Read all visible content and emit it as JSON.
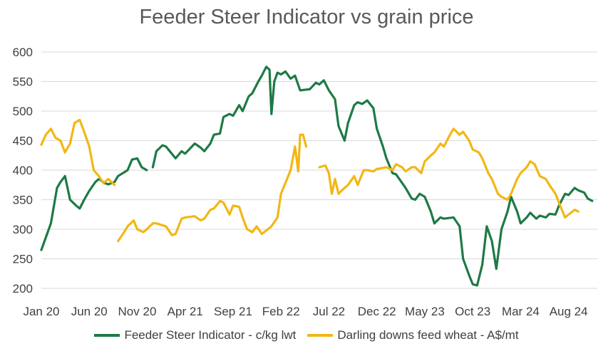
{
  "chart_data": {
    "type": "line",
    "title": "Feeder Steer Indicator vs grain price",
    "xlabel": "",
    "ylabel": "",
    "ylim": [
      200,
      600
    ],
    "yticks": [
      200,
      250,
      300,
      350,
      400,
      450,
      500,
      550,
      600
    ],
    "x_tick_labels": [
      "Jan 20",
      "Jun 20",
      "Nov 20",
      "Apr 21",
      "Sep 21",
      "Feb 22",
      "Jul 22",
      "Dec 22",
      "May 23",
      "Oct 23",
      "Mar 24",
      "Aug 24"
    ],
    "x_tick_dates": [
      "2020-01",
      "2020-06",
      "2020-11",
      "2021-04",
      "2021-09",
      "2022-02",
      "2022-07",
      "2022-12",
      "2023-05",
      "2023-10",
      "2024-03",
      "2024-08"
    ],
    "x_range": [
      "2020-01",
      "2024-11"
    ],
    "grid": "horizontal",
    "legend_position": "bottom",
    "series": [
      {
        "name": "Feeder Steer Indicator - c/kg lwt",
        "color": "#1e7a46",
        "segments": [
          [
            [
              "2020-01",
              265
            ],
            [
              "2020-02",
              310
            ],
            [
              "2020-02-20",
              370
            ],
            [
              "2020-03",
              380
            ],
            [
              "2020-03-15",
              390
            ],
            [
              "2020-04",
              350
            ],
            [
              "2020-04-20",
              340
            ],
            [
              "2020-05",
              335
            ],
            [
              "2020-05-15",
              350
            ],
            [
              "2020-06",
              365
            ],
            [
              "2020-06-20",
              380
            ],
            [
              "2020-07",
              385
            ],
            [
              "2020-07-20",
              378
            ],
            [
              "2020-08",
              376
            ],
            [
              "2020-08-20",
              380
            ],
            [
              "2020-09",
              390
            ],
            [
              "2020-10",
              400
            ],
            [
              "2020-10-15",
              418
            ],
            [
              "2020-11",
              420
            ],
            [
              "2020-11-15",
              405
            ],
            [
              "2020-12",
              400
            ]
          ],
          [
            [
              "2020-12-20",
              405
            ],
            [
              "2021-01",
              432
            ],
            [
              "2021-01-20",
              442
            ],
            [
              "2021-02",
              440
            ],
            [
              "2021-03",
              420
            ],
            [
              "2021-03-20",
              432
            ],
            [
              "2021-04",
              428
            ],
            [
              "2021-05",
              445
            ],
            [
              "2021-05-20",
              438
            ],
            [
              "2021-06",
              432
            ],
            [
              "2021-06-20",
              445
            ],
            [
              "2021-07",
              460
            ],
            [
              "2021-07-20",
              462
            ],
            [
              "2021-08",
              490
            ],
            [
              "2021-08-20",
              495
            ],
            [
              "2021-09",
              492
            ],
            [
              "2021-09-20",
              510
            ],
            [
              "2021-10",
              500
            ],
            [
              "2021-10-20",
              525
            ],
            [
              "2021-11",
              530
            ],
            [
              "2021-11-20",
              550
            ],
            [
              "2021-12",
              560
            ],
            [
              "2021-12-15",
              575
            ],
            [
              "2021-12-25",
              570
            ],
            [
              "2022-01",
              495
            ],
            [
              "2022-01-10",
              550
            ],
            [
              "2022-01-20",
              565
            ],
            [
              "2022-02",
              562
            ],
            [
              "2022-02-15",
              567
            ],
            [
              "2022-03",
              555
            ],
            [
              "2022-03-15",
              560
            ],
            [
              "2022-04",
              535
            ],
            [
              "2022-05",
              537
            ],
            [
              "2022-05-20",
              548
            ],
            [
              "2022-06",
              545
            ],
            [
              "2022-06-15",
              552
            ],
            [
              "2022-07",
              535
            ],
            [
              "2022-07-20",
              520
            ],
            [
              "2022-08",
              475
            ],
            [
              "2022-08-20",
              450
            ],
            [
              "2022-09",
              480
            ],
            [
              "2022-09-20",
              510
            ],
            [
              "2022-10",
              515
            ],
            [
              "2022-10-15",
              512
            ],
            [
              "2022-11",
              518
            ],
            [
              "2022-11-20",
              505
            ],
            [
              "2022-12",
              470
            ],
            [
              "2022-12-20",
              440
            ],
            [
              "2023-01",
              420
            ],
            [
              "2023-01-20",
              395
            ],
            [
              "2023-02",
              393
            ],
            [
              "2023-03",
              370
            ],
            [
              "2023-03-20",
              352
            ],
            [
              "2023-04",
              350
            ],
            [
              "2023-04-15",
              360
            ],
            [
              "2023-05",
              355
            ],
            [
              "2023-05-20",
              330
            ],
            [
              "2023-06",
              310
            ],
            [
              "2023-06-20",
              320
            ],
            [
              "2023-07",
              318
            ],
            [
              "2023-08",
              320
            ],
            [
              "2023-08-20",
              305
            ],
            [
              "2023-09",
              250
            ],
            [
              "2023-09-20",
              222
            ],
            [
              "2023-10",
              207
            ],
            [
              "2023-10-15",
              205
            ],
            [
              "2023-11",
              240
            ],
            [
              "2023-11-15",
              305
            ],
            [
              "2023-12",
              280
            ],
            [
              "2023-12-15",
              233
            ],
            [
              "2024-01",
              300
            ],
            [
              "2024-01-20",
              330
            ],
            [
              "2024-02",
              355
            ],
            [
              "2024-02-20",
              330
            ],
            [
              "2024-03",
              310
            ],
            [
              "2024-03-20",
              320
            ],
            [
              "2024-04",
              328
            ],
            [
              "2024-04-20",
              318
            ],
            [
              "2024-05",
              323
            ],
            [
              "2024-05-20",
              320
            ],
            [
              "2024-06",
              326
            ],
            [
              "2024-06-20",
              325
            ],
            [
              "2024-07",
              340
            ],
            [
              "2024-07-20",
              360
            ],
            [
              "2024-08",
              358
            ],
            [
              "2024-08-20",
              370
            ],
            [
              "2024-09",
              366
            ],
            [
              "2024-09-20",
              362
            ],
            [
              "2024-10",
              352
            ],
            [
              "2024-10-15",
              348
            ]
          ]
        ]
      },
      {
        "name": "Darling downs feed wheat - A$/mt",
        "color": "#f2b716",
        "segments": [
          [
            [
              "2020-01",
              443
            ],
            [
              "2020-01-15",
              460
            ],
            [
              "2020-02",
              470
            ],
            [
              "2020-02-15",
              455
            ],
            [
              "2020-03",
              450
            ],
            [
              "2020-03-15",
              430
            ],
            [
              "2020-04",
              445
            ],
            [
              "2020-04-15",
              480
            ],
            [
              "2020-05",
              485
            ],
            [
              "2020-05-15",
              465
            ],
            [
              "2020-06",
              440
            ],
            [
              "2020-06-15",
              400
            ],
            [
              "2020-07",
              390
            ],
            [
              "2020-07-15",
              378
            ],
            [
              "2020-08",
              385
            ],
            [
              "2020-08-20",
              375
            ]
          ],
          [
            [
              "2020-09",
              280
            ],
            [
              "2020-09-20",
              295
            ],
            [
              "2020-10",
              305
            ],
            [
              "2020-10-20",
              315
            ],
            [
              "2020-11",
              300
            ],
            [
              "2020-11-20",
              295
            ],
            [
              "2020-12",
              300
            ],
            [
              "2020-12-20",
              310
            ],
            [
              "2021-01",
              310
            ],
            [
              "2021-02",
              305
            ],
            [
              "2021-02-20",
              290
            ],
            [
              "2021-03",
              292
            ],
            [
              "2021-03-20",
              318
            ],
            [
              "2021-04",
              320
            ],
            [
              "2021-05",
              322
            ],
            [
              "2021-05-20",
              315
            ],
            [
              "2021-06",
              318
            ],
            [
              "2021-06-20",
              333
            ],
            [
              "2021-07",
              335
            ],
            [
              "2021-07-20",
              348
            ],
            [
              "2021-08",
              345
            ],
            [
              "2021-08-20",
              325
            ],
            [
              "2021-09",
              340
            ],
            [
              "2021-09-20",
              338
            ],
            [
              "2021-10",
              320
            ],
            [
              "2021-10-15",
              300
            ],
            [
              "2021-11",
              295
            ],
            [
              "2021-11-15",
              305
            ],
            [
              "2021-12",
              292
            ],
            [
              "2021-12-20",
              300
            ],
            [
              "2022-01",
              305
            ],
            [
              "2022-01-20",
              320
            ],
            [
              "2022-02",
              360
            ],
            [
              "2022-02-20",
              385
            ],
            [
              "2022-03",
              400
            ],
            [
              "2022-03-15",
              440
            ],
            [
              "2022-03-25",
              398
            ],
            [
              "2022-04",
              460
            ],
            [
              "2022-04-10",
              460
            ],
            [
              "2022-04-20",
              440
            ]
          ],
          [
            [
              "2022-06",
              405
            ],
            [
              "2022-06-20",
              408
            ],
            [
              "2022-07",
              395
            ],
            [
              "2022-07-10",
              360
            ],
            [
              "2022-07-20",
              385
            ],
            [
              "2022-08",
              360
            ],
            [
              "2022-08-20",
              370
            ],
            [
              "2022-09",
              375
            ],
            [
              "2022-09-20",
              390
            ],
            [
              "2022-10",
              375
            ],
            [
              "2022-10-20",
              400
            ],
            [
              "2022-11",
              400
            ],
            [
              "2022-11-20",
              398
            ],
            [
              "2022-12",
              402
            ],
            [
              "2023-01",
              405
            ],
            [
              "2023-01-20",
              400
            ],
            [
              "2023-02",
              410
            ],
            [
              "2023-02-20",
              405
            ],
            [
              "2023-03",
              398
            ],
            [
              "2023-03-20",
              405
            ],
            [
              "2023-04",
              405
            ],
            [
              "2023-04-20",
              395
            ],
            [
              "2023-05",
              415
            ],
            [
              "2023-05-20",
              425
            ],
            [
              "2023-06",
              430
            ],
            [
              "2023-06-20",
              445
            ],
            [
              "2023-07",
              440
            ],
            [
              "2023-07-20",
              460
            ],
            [
              "2023-08",
              470
            ],
            [
              "2023-08-20",
              460
            ],
            [
              "2023-09",
              465
            ],
            [
              "2023-09-20",
              450
            ],
            [
              "2023-10",
              435
            ],
            [
              "2023-10-20",
              430
            ],
            [
              "2023-11",
              420
            ],
            [
              "2023-11-20",
              395
            ],
            [
              "2023-12",
              385
            ],
            [
              "2023-12-20",
              360
            ],
            [
              "2024-01",
              355
            ],
            [
              "2024-01-20",
              350
            ],
            [
              "2024-02",
              360
            ],
            [
              "2024-02-20",
              385
            ],
            [
              "2024-03",
              395
            ],
            [
              "2024-03-20",
              405
            ],
            [
              "2024-04",
              415
            ],
            [
              "2024-04-15",
              410
            ],
            [
              "2024-05",
              390
            ],
            [
              "2024-05-20",
              385
            ],
            [
              "2024-06",
              375
            ],
            [
              "2024-06-20",
              360
            ],
            [
              "2024-07",
              345
            ],
            [
              "2024-07-20",
              320
            ],
            [
              "2024-08",
              325
            ],
            [
              "2024-08-20",
              333
            ],
            [
              "2024-09",
              330
            ]
          ]
        ]
      }
    ]
  }
}
